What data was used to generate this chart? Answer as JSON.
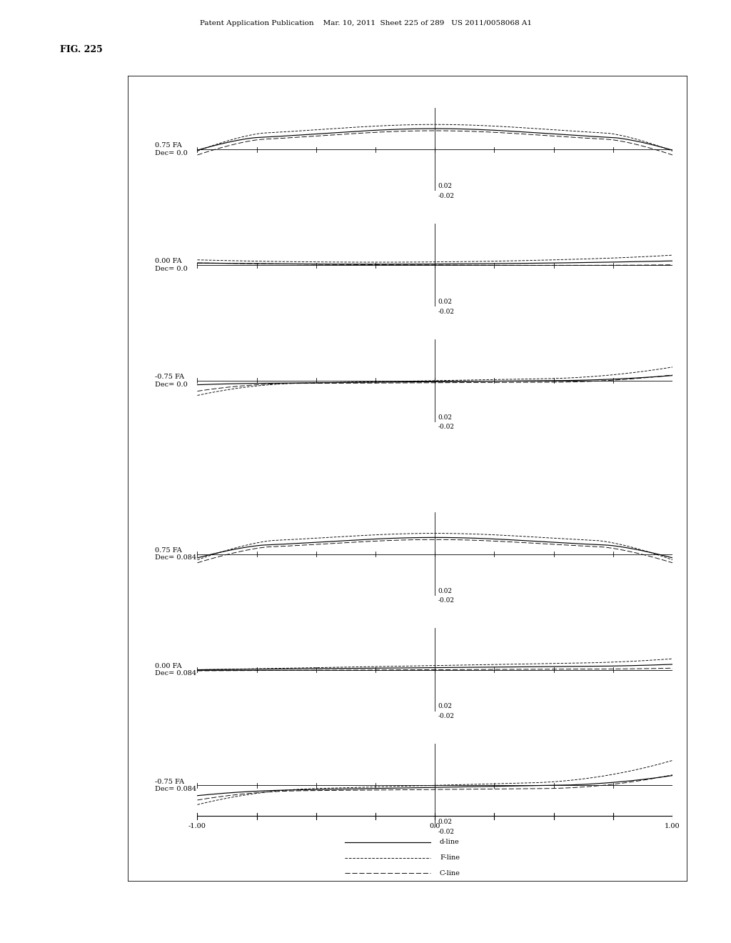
{
  "fig_label": "FIG. 225",
  "header": "Patent Application Publication    Mar. 10, 2011  Sheet 225 of 289   US 2011/0058068 A1",
  "subplots": [
    {
      "label": "0.75 FA\nDec= 0.0"
    },
    {
      "label": "0.00 FA\nDec= 0.0"
    },
    {
      "label": "-0.75 FA\nDec= 0.0"
    },
    {
      "label": "0.75 FA\nDec= 0.084"
    },
    {
      "label": "0.00 FA\nDec= 0.084"
    },
    {
      "label": "-0.75 FA\nDec= 0.084"
    }
  ],
  "xlim": [
    -1.0,
    1.0
  ],
  "ylim": [
    -0.02,
    0.02
  ],
  "xticks": [
    -1.0,
    -0.75,
    -0.5,
    -0.25,
    0.0,
    0.25,
    0.5,
    0.75,
    1.0
  ],
  "legend_labels": [
    "d-line",
    "F-line",
    "C-line"
  ],
  "background_color": "#ffffff"
}
